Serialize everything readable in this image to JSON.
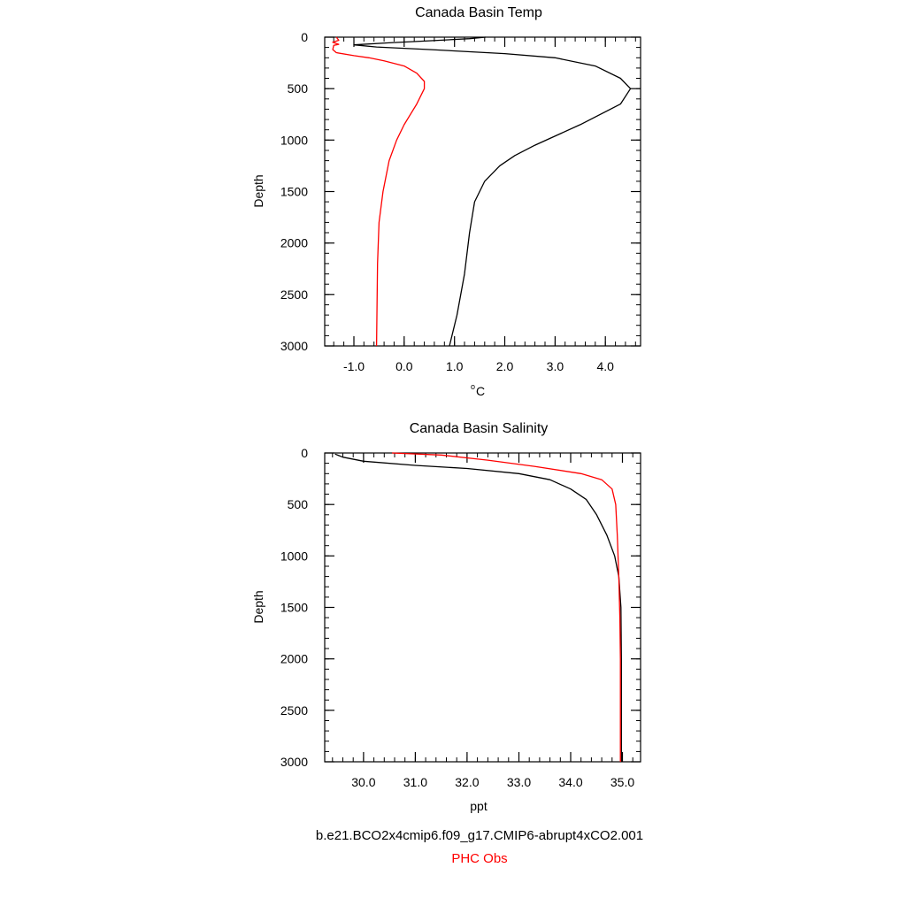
{
  "colors": {
    "model": "#000000",
    "obs": "#ff0000",
    "axis": "#000000"
  },
  "legend": {
    "model_label": "b.e21.BCO2x4cmip6.f09_g17.CMIP6-abrupt4xCO2.001",
    "obs_label": "PHC Obs"
  },
  "chart_data": [
    {
      "type": "line",
      "title": "Canada Basin Temp",
      "xlabel_sup": "o",
      "xlabel_main": "C",
      "ylabel": "Depth",
      "xlim": [
        -1.58,
        4.7
      ],
      "ylim": [
        3000,
        0
      ],
      "x_ticks": [
        -1.0,
        0.0,
        1.0,
        2.0,
        3.0,
        4.0
      ],
      "x_tick_labels": [
        "-1.0",
        "0.0",
        "1.0",
        "2.0",
        "3.0",
        "4.0"
      ],
      "y_ticks": [
        0,
        500,
        1000,
        1500,
        2000,
        2500,
        3000
      ],
      "y_tick_labels": [
        "0",
        "500",
        "1000",
        "1500",
        "2000",
        "2500",
        "3000"
      ],
      "x_minor_step": 0.2,
      "y_minor_step": 100,
      "series": [
        {
          "role": "model",
          "points": [
            [
              1.62,
              0
            ],
            [
              1.3,
              15
            ],
            [
              0.5,
              35
            ],
            [
              -0.3,
              55
            ],
            [
              -1.0,
              75
            ],
            [
              -0.55,
              95
            ],
            [
              0.5,
              120
            ],
            [
              2.0,
              160
            ],
            [
              3.0,
              200
            ],
            [
              3.8,
              280
            ],
            [
              4.3,
              400
            ],
            [
              4.5,
              500
            ],
            [
              4.3,
              650
            ],
            [
              3.5,
              850
            ],
            [
              2.6,
              1050
            ],
            [
              2.2,
              1150
            ],
            [
              1.9,
              1250
            ],
            [
              1.6,
              1400
            ],
            [
              1.4,
              1600
            ],
            [
              1.3,
              1900
            ],
            [
              1.2,
              2300
            ],
            [
              1.05,
              2700
            ],
            [
              0.9,
              3000
            ]
          ]
        },
        {
          "role": "obs",
          "points": [
            [
              -1.35,
              0
            ],
            [
              -1.3,
              30
            ],
            [
              -1.42,
              50
            ],
            [
              -1.3,
              70
            ],
            [
              -1.4,
              80
            ],
            [
              -1.42,
              120
            ],
            [
              -1.35,
              150
            ],
            [
              -1.0,
              180
            ],
            [
              -0.7,
              200
            ],
            [
              -0.4,
              230
            ],
            [
              0.0,
              280
            ],
            [
              0.25,
              350
            ],
            [
              0.4,
              430
            ],
            [
              0.4,
              500
            ],
            [
              0.25,
              650
            ],
            [
              0.0,
              850
            ],
            [
              -0.15,
              1000
            ],
            [
              -0.3,
              1200
            ],
            [
              -0.42,
              1500
            ],
            [
              -0.5,
              1800
            ],
            [
              -0.53,
              2200
            ],
            [
              -0.55,
              3000
            ]
          ]
        }
      ]
    },
    {
      "type": "line",
      "title": "Canada Basin Salinity",
      "xlabel": "ppt",
      "ylabel": "Depth",
      "xlim": [
        29.25,
        35.35
      ],
      "ylim": [
        3000,
        0
      ],
      "x_ticks": [
        30.0,
        31.0,
        32.0,
        33.0,
        34.0,
        35.0
      ],
      "x_tick_labels": [
        "30.0",
        "31.0",
        "32.0",
        "33.0",
        "34.0",
        "35.0"
      ],
      "y_ticks": [
        0,
        500,
        1000,
        1500,
        2000,
        2500,
        3000
      ],
      "y_tick_labels": [
        "0",
        "500",
        "1000",
        "1500",
        "2000",
        "2500",
        "3000"
      ],
      "x_minor_step": 0.2,
      "y_minor_step": 100,
      "series": [
        {
          "role": "model",
          "points": [
            [
              29.45,
              10
            ],
            [
              29.6,
              40
            ],
            [
              30.0,
              80
            ],
            [
              31.0,
              120
            ],
            [
              32.0,
              150
            ],
            [
              33.0,
              200
            ],
            [
              33.6,
              260
            ],
            [
              34.0,
              350
            ],
            [
              34.3,
              450
            ],
            [
              34.5,
              600
            ],
            [
              34.7,
              800
            ],
            [
              34.85,
              1000
            ],
            [
              34.93,
              1200
            ],
            [
              34.97,
              1500
            ],
            [
              34.98,
              2000
            ],
            [
              34.98,
              3000
            ]
          ]
        },
        {
          "role": "obs",
          "points": [
            [
              30.55,
              0
            ],
            [
              31.5,
              20
            ],
            [
              32.4,
              70
            ],
            [
              33.3,
              130
            ],
            [
              34.2,
              200
            ],
            [
              34.6,
              260
            ],
            [
              34.8,
              350
            ],
            [
              34.87,
              500
            ],
            [
              34.9,
              800
            ],
            [
              34.93,
              1200
            ],
            [
              34.95,
              1600
            ],
            [
              34.96,
              2000
            ],
            [
              34.96,
              3000
            ]
          ]
        }
      ]
    }
  ]
}
